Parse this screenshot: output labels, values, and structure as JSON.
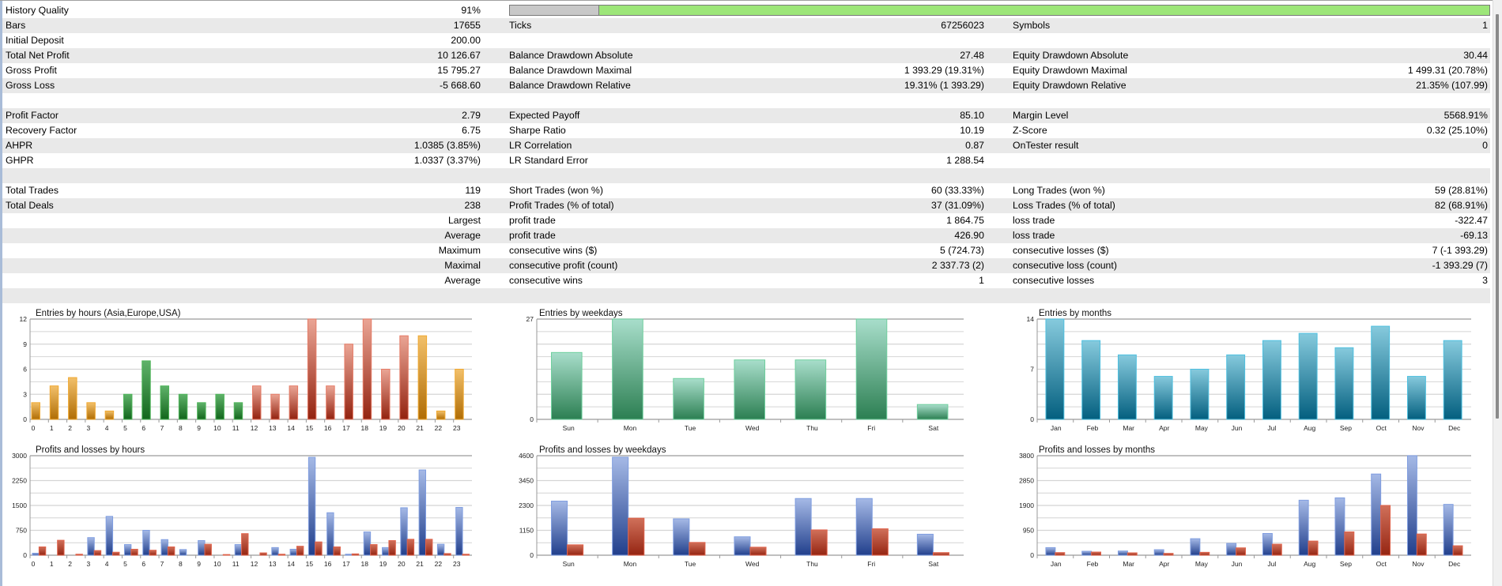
{
  "history_quality": {
    "label": "History Quality",
    "value": "91%",
    "fraction": 0.91
  },
  "rows": [
    {
      "c1": {
        "label": "Bars",
        "value": "17655"
      },
      "c2": {
        "label": "Ticks",
        "value": "67256023"
      },
      "c3": {
        "label": "Symbols",
        "value": "1"
      }
    },
    {
      "c1": {
        "label": "Initial Deposit",
        "value": "200.00"
      },
      "c2": {
        "label": "",
        "value": ""
      },
      "c3": {
        "label": "",
        "value": ""
      }
    },
    {
      "c1": {
        "label": "Total Net Profit",
        "value": "10 126.67"
      },
      "c2": {
        "label": "Balance Drawdown Absolute",
        "value": "27.48"
      },
      "c3": {
        "label": "Equity Drawdown Absolute",
        "value": "30.44"
      }
    },
    {
      "c1": {
        "label": "Gross Profit",
        "value": "15 795.27"
      },
      "c2": {
        "label": "Balance Drawdown Maximal",
        "value": "1 393.29 (19.31%)"
      },
      "c3": {
        "label": "Equity Drawdown Maximal",
        "value": "1 499.31 (20.78%)"
      }
    },
    {
      "c1": {
        "label": "Gross Loss",
        "value": "-5 668.60"
      },
      "c2": {
        "label": "Balance Drawdown Relative",
        "value": "19.31% (1 393.29)"
      },
      "c3": {
        "label": "Equity Drawdown Relative",
        "value": "21.35% (107.99)"
      }
    },
    {
      "c1": {
        "label": "",
        "value": ""
      },
      "c2": {
        "label": "",
        "value": ""
      },
      "c3": {
        "label": "",
        "value": ""
      }
    },
    {
      "c1": {
        "label": "Profit Factor",
        "value": "2.79"
      },
      "c2": {
        "label": "Expected Payoff",
        "value": "85.10"
      },
      "c3": {
        "label": "Margin Level",
        "value": "5568.91%"
      }
    },
    {
      "c1": {
        "label": "Recovery Factor",
        "value": "6.75"
      },
      "c2": {
        "label": "Sharpe Ratio",
        "value": "10.19"
      },
      "c3": {
        "label": "Z-Score",
        "value": "0.32 (25.10%)"
      }
    },
    {
      "c1": {
        "label": "AHPR",
        "value": "1.0385 (3.85%)"
      },
      "c2": {
        "label": "LR Correlation",
        "value": "0.87"
      },
      "c3": {
        "label": "OnTester result",
        "value": "0"
      }
    },
    {
      "c1": {
        "label": "GHPR",
        "value": "1.0337 (3.37%)"
      },
      "c2": {
        "label": "LR Standard Error",
        "value": "1 288.54"
      },
      "c3": {
        "label": "",
        "value": ""
      }
    },
    {
      "c1": {
        "label": "",
        "value": ""
      },
      "c2": {
        "label": "",
        "value": ""
      },
      "c3": {
        "label": "",
        "value": ""
      }
    },
    {
      "c1": {
        "label": "Total Trades",
        "value": "119"
      },
      "c2": {
        "label": "Short Trades (won %)",
        "value": "60 (33.33%)"
      },
      "c3": {
        "label": "Long Trades (won %)",
        "value": "59 (28.81%)"
      }
    },
    {
      "c1": {
        "label": "Total Deals",
        "value": "238"
      },
      "c2": {
        "label": "Profit Trades (% of total)",
        "value": "37 (31.09%)"
      },
      "c3": {
        "label": "Loss Trades (% of total)",
        "value": "82 (68.91%)"
      }
    },
    {
      "c1": {
        "label": "",
        "value": "Largest"
      },
      "c2": {
        "label": "profit trade",
        "value": "1 864.75"
      },
      "c3": {
        "label": "loss trade",
        "value": "-322.47"
      }
    },
    {
      "c1": {
        "label": "",
        "value": "Average"
      },
      "c2": {
        "label": "profit trade",
        "value": "426.90"
      },
      "c3": {
        "label": "loss trade",
        "value": "-69.13"
      }
    },
    {
      "c1": {
        "label": "",
        "value": "Maximum"
      },
      "c2": {
        "label": "consecutive wins ($)",
        "value": "5 (724.73)"
      },
      "c3": {
        "label": "consecutive losses ($)",
        "value": "7 (-1 393.29)"
      }
    },
    {
      "c1": {
        "label": "",
        "value": "Maximal"
      },
      "c2": {
        "label": "consecutive profit (count)",
        "value": "2 337.73 (2)"
      },
      "c3": {
        "label": "consecutive loss (count)",
        "value": "-1 393.29 (7)"
      }
    },
    {
      "c1": {
        "label": "",
        "value": "Average"
      },
      "c2": {
        "label": "consecutive wins",
        "value": "1"
      },
      "c3": {
        "label": "consecutive losses",
        "value": "3"
      }
    },
    {
      "c1": {
        "label": "",
        "value": ""
      },
      "c2": {
        "label": "",
        "value": ""
      },
      "c3": {
        "label": "",
        "value": ""
      }
    }
  ],
  "colors": {
    "asia": "#c98a1c",
    "europe": "#2f8a3a",
    "usa": "#b8412d",
    "weekday": "#4ba57a",
    "month": "#2a94b4",
    "profit": "#3d5fa8",
    "loss": "#b23a22",
    "progress_fill": "#9de679",
    "progress_empty": "#c8c8c8"
  },
  "chart_data": [
    {
      "id": "entries-hours",
      "type": "bar",
      "title": "Entries by hours (Asia,Europe,USA)",
      "categories": [
        "0",
        "1",
        "2",
        "3",
        "4",
        "5",
        "6",
        "7",
        "8",
        "9",
        "10",
        "11",
        "12",
        "13",
        "14",
        "15",
        "16",
        "17",
        "18",
        "19",
        "20",
        "21",
        "22",
        "23"
      ],
      "values": [
        2,
        4,
        5,
        2,
        1,
        3,
        7,
        4,
        3,
        2,
        3,
        2,
        4,
        3,
        4,
        12,
        4,
        9,
        12,
        6,
        10,
        10,
        1,
        6
      ],
      "groups": [
        "asia",
        "asia",
        "asia",
        "asia",
        "asia",
        "europe",
        "europe",
        "europe",
        "europe",
        "europe",
        "europe",
        "europe",
        "usa",
        "usa",
        "usa",
        "usa",
        "usa",
        "usa",
        "usa",
        "usa",
        "usa",
        "asia",
        "asia",
        "asia"
      ],
      "yticks": [
        "0",
        "3",
        "6",
        "9",
        "12"
      ],
      "ylim": [
        0,
        12
      ],
      "grid": true
    },
    {
      "id": "entries-weekdays",
      "type": "bar",
      "title": "Entries by weekdays",
      "categories": [
        "Sun",
        "Mon",
        "Tue",
        "Wed",
        "Thu",
        "Fri",
        "Sat"
      ],
      "values": [
        18,
        27,
        11,
        16,
        16,
        27,
        4
      ],
      "yticks": [
        "0",
        "27"
      ],
      "ylim": [
        0,
        27
      ],
      "grid": true
    },
    {
      "id": "entries-months",
      "type": "bar",
      "title": "Entries by months",
      "categories": [
        "Jan",
        "Feb",
        "Mar",
        "Apr",
        "May",
        "Jun",
        "Jul",
        "Aug",
        "Sep",
        "Oct",
        "Nov",
        "Dec"
      ],
      "values": [
        14,
        11,
        9,
        6,
        7,
        9,
        11,
        12,
        10,
        13,
        6,
        11
      ],
      "yticks": [
        "0",
        "7",
        "14"
      ],
      "ylim": [
        0,
        14
      ],
      "grid": true
    },
    {
      "id": "pl-hours",
      "type": "bar",
      "title": "Profits and losses by hours",
      "categories": [
        "0",
        "1",
        "2",
        "3",
        "4",
        "5",
        "6",
        "7",
        "8",
        "9",
        "10",
        "11",
        "12",
        "13",
        "14",
        "15",
        "16",
        "17",
        "18",
        "19",
        "20",
        "21",
        "22",
        "23"
      ],
      "series": [
        {
          "name": "Profits",
          "values": [
            60,
            0,
            0,
            530,
            1170,
            320,
            750,
            470,
            170,
            440,
            0,
            320,
            0,
            230,
            180,
            2950,
            1280,
            30,
            700,
            230,
            1430,
            2570,
            330,
            1440
          ]
        },
        {
          "name": "Losses",
          "values": [
            250,
            450,
            30,
            140,
            90,
            180,
            150,
            250,
            0,
            330,
            20,
            650,
            70,
            30,
            270,
            400,
            250,
            40,
            320,
            440,
            480,
            480,
            50,
            30
          ]
        }
      ],
      "yticks": [
        "0",
        "750",
        "1500",
        "2250",
        "3000"
      ],
      "ylim": [
        0,
        3000
      ],
      "grid": true
    },
    {
      "id": "pl-weekdays",
      "type": "bar",
      "title": "Profits and losses by weekdays",
      "categories": [
        "Sun",
        "Mon",
        "Tue",
        "Wed",
        "Thu",
        "Fri",
        "Sat"
      ],
      "series": [
        {
          "name": "Profits",
          "values": [
            2500,
            4530,
            1680,
            850,
            2620,
            2620,
            970
          ]
        },
        {
          "name": "Losses",
          "values": [
            480,
            1710,
            590,
            370,
            1170,
            1220,
            120
          ]
        }
      ],
      "yticks": [
        "0",
        "1150",
        "2300",
        "3450",
        "4600"
      ],
      "ylim": [
        0,
        4600
      ],
      "grid": true
    },
    {
      "id": "pl-months",
      "type": "bar",
      "title": "Profits and losses by months",
      "categories": [
        "Jan",
        "Feb",
        "Mar",
        "Apr",
        "May",
        "Jun",
        "Jul",
        "Aug",
        "Sep",
        "Oct",
        "Nov",
        "Dec"
      ],
      "series": [
        {
          "name": "Profits",
          "values": [
            290,
            150,
            160,
            210,
            630,
            450,
            830,
            2100,
            2190,
            3100,
            3800,
            1940
          ]
        },
        {
          "name": "Losses",
          "values": [
            100,
            120,
            90,
            70,
            110,
            280,
            420,
            540,
            890,
            1900,
            810,
            360
          ]
        }
      ],
      "yticks": [
        "0",
        "950",
        "1900",
        "2850",
        "3800"
      ],
      "ylim": [
        0,
        3800
      ],
      "grid": true
    }
  ]
}
